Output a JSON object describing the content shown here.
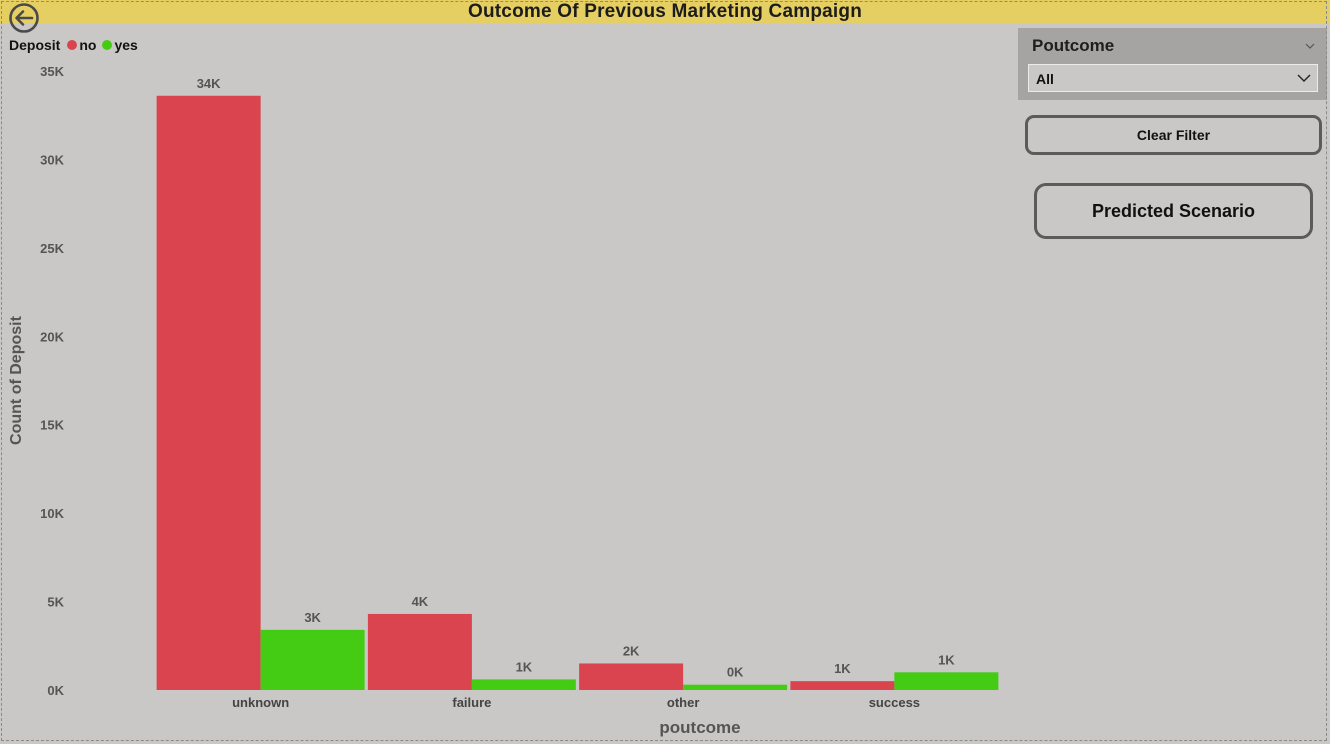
{
  "page": {
    "title": "Outcome Of Previous Marketing Campaign"
  },
  "legend": {
    "title": "Deposit",
    "items": [
      {
        "label": "no",
        "color": "#d9444f"
      },
      {
        "label": "yes",
        "color": "#44cc14"
      }
    ]
  },
  "slicer": {
    "title": "Poutcome",
    "selected": "All"
  },
  "buttons": {
    "clear_filter": "Clear Filter",
    "predicted_scenario": "Predicted Scenario"
  },
  "icons": {
    "back": "back-arrow-icon",
    "header_chevron": "chevron-down-icon",
    "dropdown_chevron": "chevron-down-icon"
  },
  "chart_data": {
    "type": "bar",
    "title": "",
    "xlabel": "poutcome",
    "ylabel": "Count of Deposit",
    "ylim": [
      0,
      35000
    ],
    "yticks": [
      "0K",
      "5K",
      "10K",
      "15K",
      "20K",
      "25K",
      "30K",
      "35K"
    ],
    "categories": [
      "unknown",
      "failure",
      "other",
      "success"
    ],
    "series": [
      {
        "name": "no",
        "color": "#d9444f",
        "values": [
          33600,
          4300,
          1500,
          500
        ],
        "labels": [
          "34K",
          "4K",
          "2K",
          "1K"
        ]
      },
      {
        "name": "yes",
        "color": "#44cc14",
        "values": [
          3400,
          600,
          300,
          1000
        ],
        "labels": [
          "3K",
          "1K",
          "0K",
          "1K"
        ]
      }
    ],
    "grid": false,
    "legend_position": "top-left"
  }
}
